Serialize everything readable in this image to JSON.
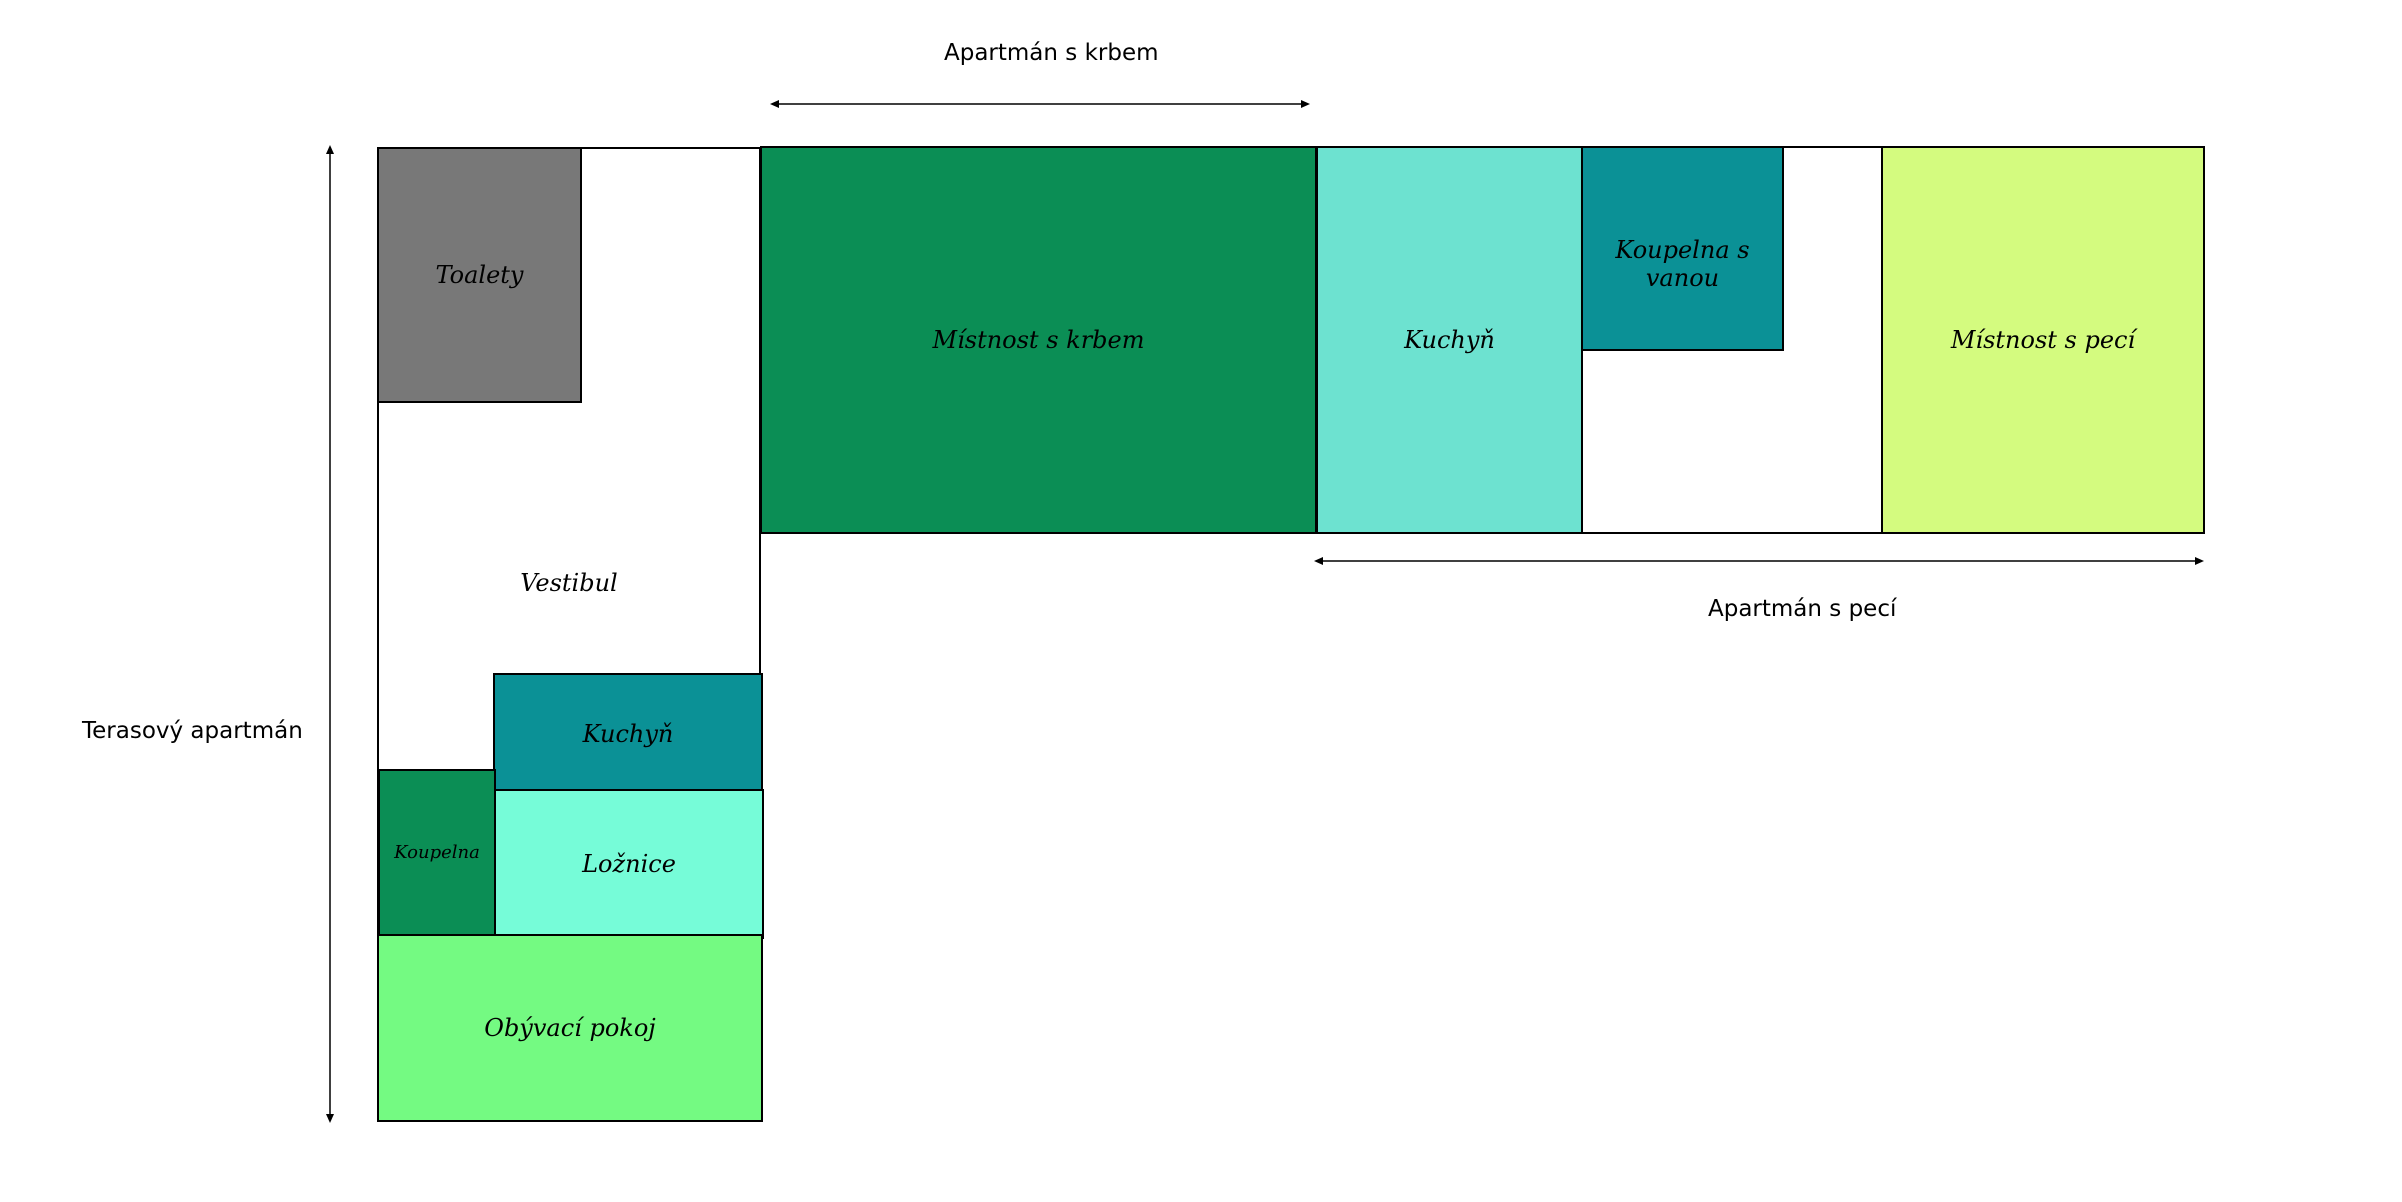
{
  "diagram": {
    "groups": {
      "fireplace": "Apartmán s krbem",
      "stove": "Apartmán s pecí",
      "terrace": "Terasový apartmán"
    },
    "rooms": {
      "toalety": "Toalety",
      "vestibul": "Vestibul",
      "kuchyn_terrace": "Kuchyň",
      "koupelna": "Koupelna",
      "loznice": "Ložnice",
      "obyvaci_pokoj": "Obývací pokoj",
      "mistnost_s_krbem": "Místnost s krbem",
      "kuchyn_stove": "Kuchyň",
      "koupelna_s_vanou": "Koupelna s vanou",
      "mistnost_s_peci": "Místnost s pecí"
    },
    "colors": {
      "toalety": "#787878",
      "vestibul": "#ffffff",
      "kuchyn_terrace": "#0b9196",
      "koupelna": "#0b8e55",
      "loznice": "#76fcd8",
      "obyvaci_pokoj": "#74fa82",
      "mistnost_s_krbem": "#0b8e55",
      "kuchyn_stove": "#6de2d0",
      "koupelna_s_vanou": "#0b9196",
      "mistnost_s_peci": "#d4fb7f"
    }
  }
}
